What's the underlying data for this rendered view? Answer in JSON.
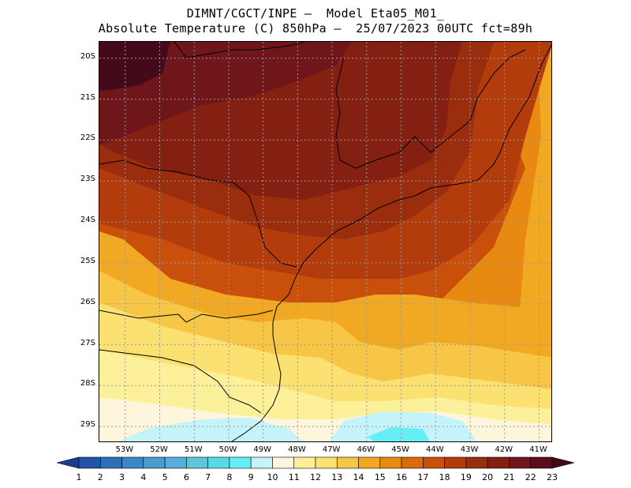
{
  "title": {
    "line1": "DIMNT/CGCT/INPE –  Model Eta05_M01_",
    "line2": "Absolute Temperature (C) 850hPa –  25/07/2023 00UTC fct=89h"
  },
  "map": {
    "lon_range": [
      -53.75,
      -40.6
    ],
    "lat_range": [
      -19.6,
      -29.4
    ],
    "lat_ticks": [
      {
        "value": -20,
        "label": "20S"
      },
      {
        "value": -21,
        "label": "21S"
      },
      {
        "value": -22,
        "label": "22S"
      },
      {
        "value": -23,
        "label": "23S"
      },
      {
        "value": -24,
        "label": "24S"
      },
      {
        "value": -25,
        "label": "25S"
      },
      {
        "value": -26,
        "label": "26S"
      },
      {
        "value": -27,
        "label": "27S"
      },
      {
        "value": -28,
        "label": "28S"
      },
      {
        "value": -29,
        "label": "29S"
      }
    ],
    "lon_ticks": [
      {
        "value": -53,
        "label": "53W"
      },
      {
        "value": -52,
        "label": "52W"
      },
      {
        "value": -51,
        "label": "51W"
      },
      {
        "value": -50,
        "label": "50W"
      },
      {
        "value": -49,
        "label": "49W"
      },
      {
        "value": -48,
        "label": "48W"
      },
      {
        "value": -47,
        "label": "47W"
      },
      {
        "value": -46,
        "label": "46W"
      },
      {
        "value": -45,
        "label": "45W"
      },
      {
        "value": -44,
        "label": "44W"
      },
      {
        "value": -43,
        "label": "43W"
      },
      {
        "value": -42,
        "label": "42W"
      },
      {
        "value": -41,
        "label": "41W"
      }
    ],
    "grid": true,
    "temperature_field_description": "Warm maximum (22-23 C) over NW corner near 20S 53W; 20-22 C over Sao Paulo/Minas region; 16-19 C along coast 24-26S; 12-15 C over 26-28S; 10-12 C minimum near 29S 50W and 29S 46-48W"
  },
  "colorbar": {
    "labels": [
      "1",
      "2",
      "3",
      "4",
      "5",
      "6",
      "7",
      "8",
      "9",
      "10",
      "11",
      "12",
      "13",
      "14",
      "15",
      "16",
      "17",
      "18",
      "19",
      "20",
      "21",
      "22",
      "23"
    ],
    "colors": [
      "#1b3e8c",
      "#2454a5",
      "#2f6eb9",
      "#3b85c8",
      "#4a9bd2",
      "#55b0d9",
      "#5ec5dc",
      "#58d9e6",
      "#66eef5",
      "#c4f3fa",
      "#fdf6dc",
      "#fcf09a",
      "#fbe171",
      "#f7c646",
      "#f1a923",
      "#e88a12",
      "#db6a0c",
      "#c9500a",
      "#b23c0b",
      "#992d0d",
      "#832011",
      "#6e1619",
      "#5a0d1f",
      "#440a1a"
    ]
  }
}
